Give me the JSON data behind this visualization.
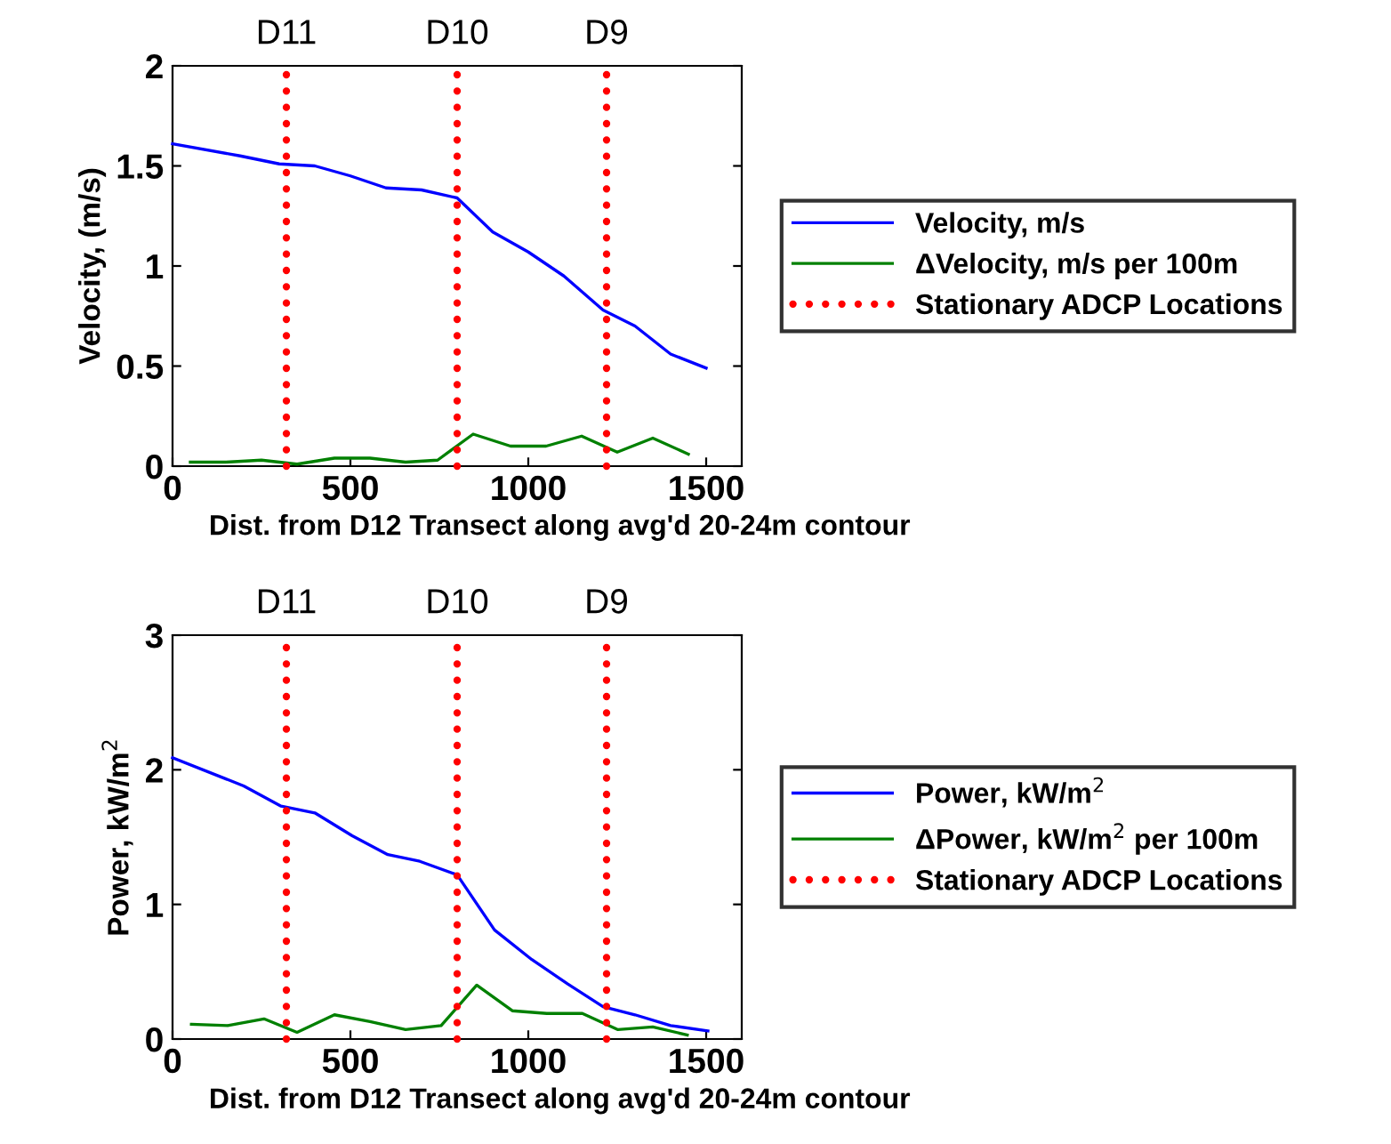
{
  "chart_data": [
    {
      "type": "line",
      "xlabel": "Dist. from D12 Transect along avg'd 20-24m contour",
      "ylabel": "Velocity, (m/s)",
      "xlim": [
        0,
        1600
      ],
      "xticks": [
        0,
        500,
        1000,
        1500
      ],
      "ylim": [
        0,
        2
      ],
      "yticks": [
        0,
        0.5,
        1,
        1.5,
        2
      ],
      "annotations": [
        {
          "text": "D11",
          "x": 320,
          "y": 2
        },
        {
          "text": "D10",
          "x": 800,
          "y": 2
        },
        {
          "text": "D9",
          "x": 1220,
          "y": 2
        }
      ],
      "legend": "right",
      "grid": false,
      "series": [
        {
          "name": "Velocity, m/s",
          "color": "#0000ff",
          "x": [
            0,
            190,
            300,
            400,
            500,
            600,
            700,
            800,
            900,
            1000,
            1100,
            1210,
            1300,
            1400,
            1500
          ],
          "values": [
            1.61,
            1.55,
            1.51,
            1.5,
            1.45,
            1.39,
            1.38,
            1.34,
            1.17,
            1.07,
            0.95,
            0.78,
            0.7,
            0.56,
            0.49
          ]
        },
        {
          "name": "ΔVelocity, m/s per 100m",
          "color": "#008000",
          "x": [
            50,
            150,
            250,
            350,
            455,
            555,
            655,
            745,
            845,
            950,
            1050,
            1150,
            1250,
            1350,
            1450
          ],
          "values": [
            0.02,
            0.02,
            0.03,
            0.01,
            0.04,
            0.04,
            0.02,
            0.03,
            0.16,
            0.1,
            0.1,
            0.15,
            0.07,
            0.14,
            0.06
          ]
        },
        {
          "name": "Stationary ADCP Locations",
          "color": "#ff0000",
          "line_style": "dotted",
          "x": [
            320,
            320,
            null,
            800,
            800,
            null,
            1220,
            1220
          ],
          "values": [
            0,
            2,
            null,
            0,
            2,
            null,
            0,
            2
          ]
        }
      ]
    },
    {
      "type": "line",
      "xlabel": "Dist. from D12 Transect along avg'd 20-24m contour",
      "ylabel": "Power, kW/m$^{2}$",
      "xlim": [
        0,
        1600
      ],
      "xticks": [
        0,
        500,
        1000,
        1500
      ],
      "ylim": [
        0,
        3
      ],
      "yticks": [
        0,
        1,
        2,
        3
      ],
      "annotations": [
        {
          "text": "D11",
          "x": 320,
          "y": 3
        },
        {
          "text": "D10",
          "x": 800,
          "y": 3
        },
        {
          "text": "D9",
          "x": 1220,
          "y": 3
        }
      ],
      "legend": "right",
      "grid": false,
      "series": [
        {
          "name": "Power, kW/m$^{2}$",
          "color": "#0000ff",
          "x": [
            0,
            200,
            305,
            400,
            505,
            605,
            695,
            800,
            905,
            1010,
            1110,
            1210,
            1300,
            1400,
            1505
          ],
          "values": [
            2.09,
            1.88,
            1.73,
            1.68,
            1.51,
            1.37,
            1.32,
            1.22,
            0.81,
            0.59,
            0.41,
            0.24,
            0.18,
            0.1,
            0.06
          ]
        },
        {
          "name": "ΔPower, kW/m$^{2}$ per 100m",
          "color": "#008000",
          "x": [
            53,
            155,
            257,
            350,
            455,
            555,
            655,
            755,
            855,
            955,
            1052,
            1152,
            1252,
            1350,
            1447
          ],
          "values": [
            0.11,
            0.1,
            0.15,
            0.05,
            0.18,
            0.13,
            0.07,
            0.1,
            0.4,
            0.21,
            0.19,
            0.19,
            0.07,
            0.09,
            0.03
          ]
        },
        {
          "name": "Stationary ADCP Locations",
          "color": "#ff0000",
          "line_style": "dotted",
          "x": [
            320,
            320,
            null,
            800,
            800,
            null,
            1220,
            1220
          ],
          "values": [
            0,
            3,
            null,
            0,
            3,
            null,
            0,
            3
          ]
        }
      ]
    }
  ]
}
